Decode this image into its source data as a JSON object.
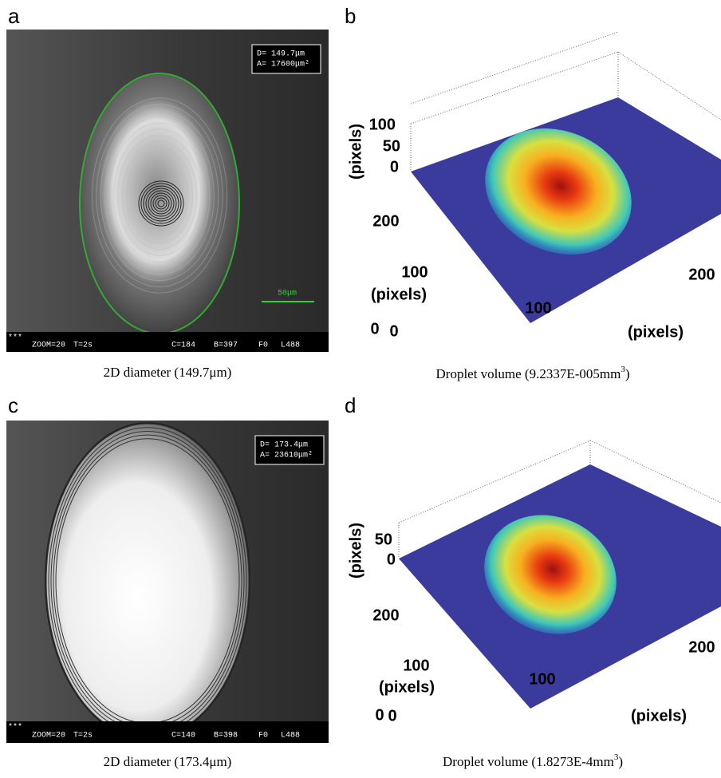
{
  "panels": [
    {
      "label": "a",
      "overlay": {
        "diameter": "D=  149.7μm",
        "area": "A=  17600μm²",
        "scale": "50μm",
        "corner": "***",
        "status": [
          "ZOOM=20",
          "T=2s",
          "C=184",
          "B=397",
          "F0",
          "L488"
        ]
      },
      "caption": "2D diameter (149.7μm)"
    },
    {
      "label": "b",
      "z_label": "(pixels)",
      "z_ticks": [
        100,
        50,
        0
      ],
      "y_label": "(pixels)",
      "y_ticks": [
        200,
        100,
        0
      ],
      "x_label": "(pixels)",
      "x_ticks": [
        0,
        100,
        200
      ],
      "caption": {
        "text": "Droplet volume (9.2337E-005mm",
        "sup": "3",
        "close": ")"
      }
    },
    {
      "label": "c",
      "overlay": {
        "diameter": "D=  173.4μm",
        "area": "A=  23610μm²",
        "corner": "***",
        "status": [
          "ZOOM=20",
          "T=2s",
          "C=140",
          "B=398",
          "F0",
          "L488"
        ]
      },
      "caption": "2D diameter (173.4μm)"
    },
    {
      "label": "d",
      "z_label": "(pixels)",
      "z_ticks": [
        50,
        0
      ],
      "y_label": "(pixels)",
      "y_ticks": [
        200,
        100,
        0
      ],
      "x_label": "(pixels)",
      "x_ticks": [
        0,
        100,
        200
      ],
      "caption": {
        "text": "Droplet volume (1.8273E-4mm",
        "sup": "3",
        "close": ")"
      }
    }
  ]
}
